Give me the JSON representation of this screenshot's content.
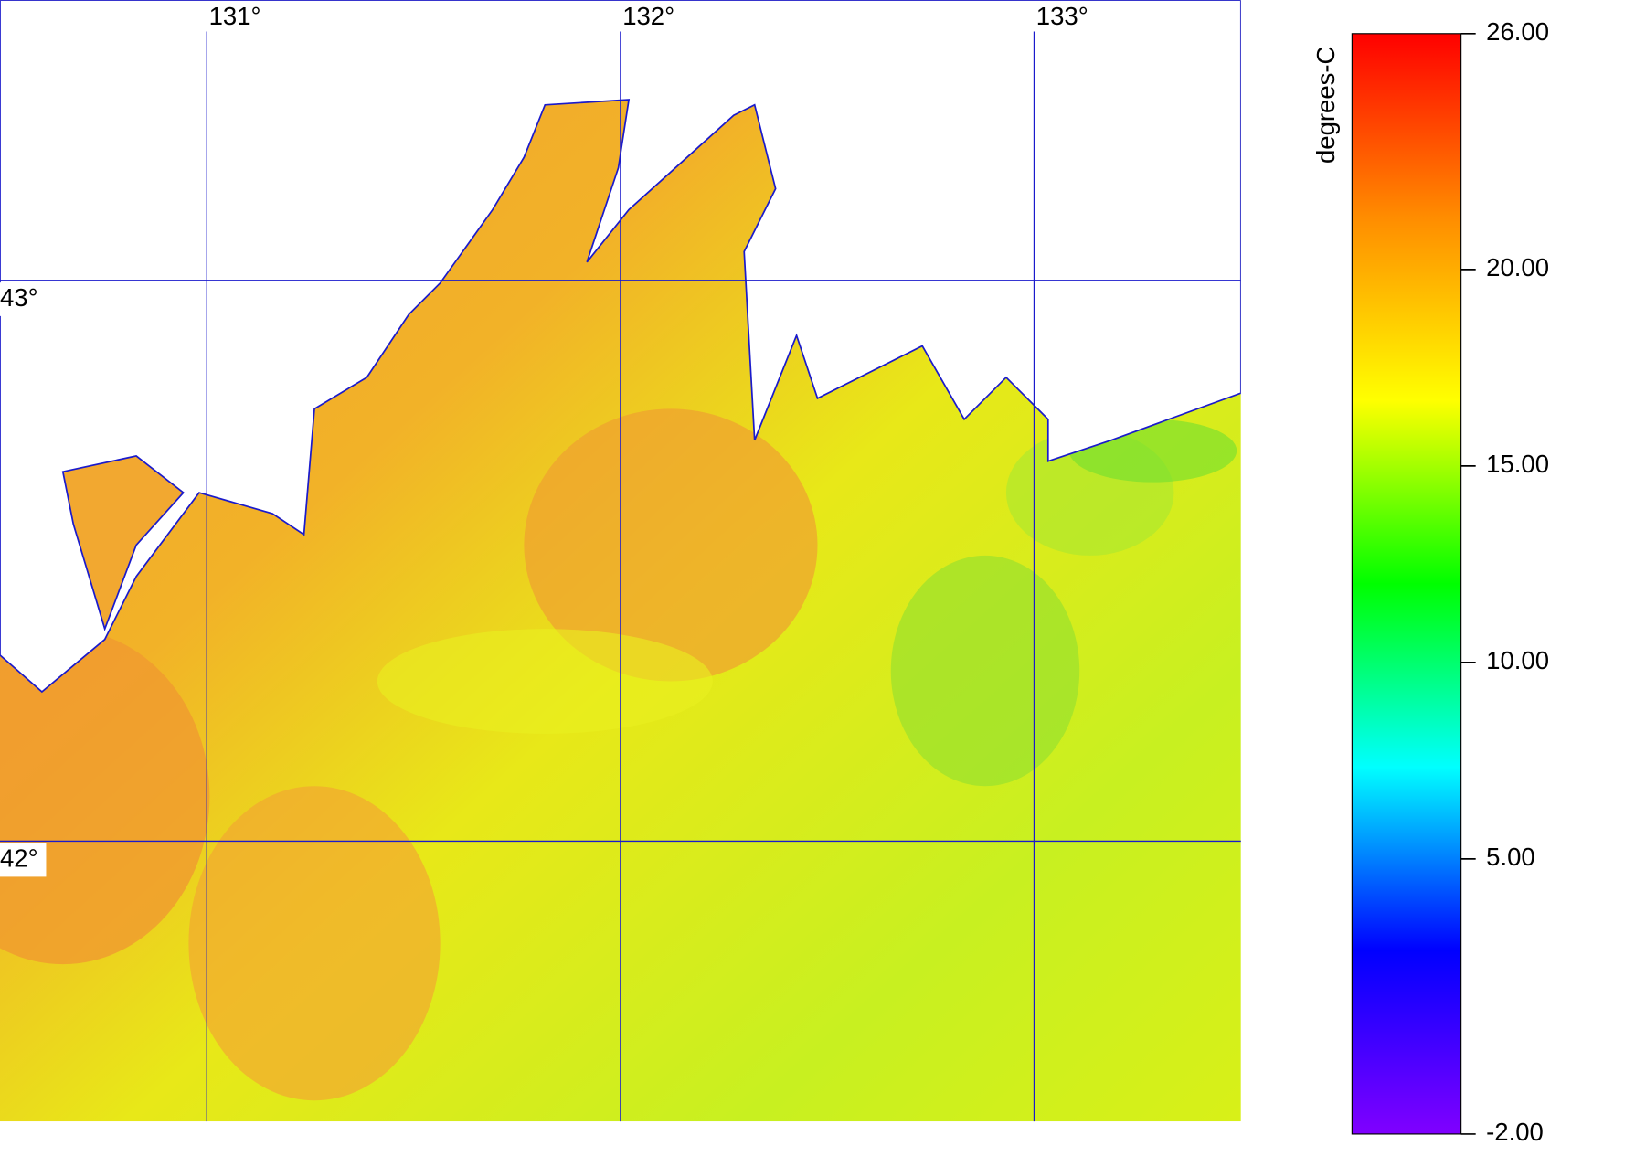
{
  "map": {
    "lonlim": [
      130.5,
      133.5
    ],
    "latlim": [
      41.5,
      43.5
    ],
    "lon_ticks": [
      {
        "value": 131,
        "label": "131°"
      },
      {
        "value": 132,
        "label": "132°"
      },
      {
        "value": 133,
        "label": "133°"
      }
    ],
    "lat_ticks": [
      {
        "value": 43,
        "label": "43°"
      },
      {
        "value": 42,
        "label": "42°"
      }
    ],
    "grid_color": "#1a1acc"
  },
  "colorbar": {
    "label": "degrees-C",
    "range": [
      -2,
      26
    ],
    "ticks": [
      {
        "value": 26,
        "label": "26.00"
      },
      {
        "value": 20,
        "label": "20.00"
      },
      {
        "value": 15,
        "label": "15.00"
      },
      {
        "value": 10,
        "label": "10.00"
      },
      {
        "value": 5,
        "label": "5.00"
      },
      {
        "value": -2,
        "label": "-2.00"
      }
    ],
    "colormap": [
      "#8000ff",
      "#0000ff",
      "#00ffff",
      "#00ff00",
      "#ffff00",
      "#ff8c00",
      "#ff0000"
    ]
  }
}
